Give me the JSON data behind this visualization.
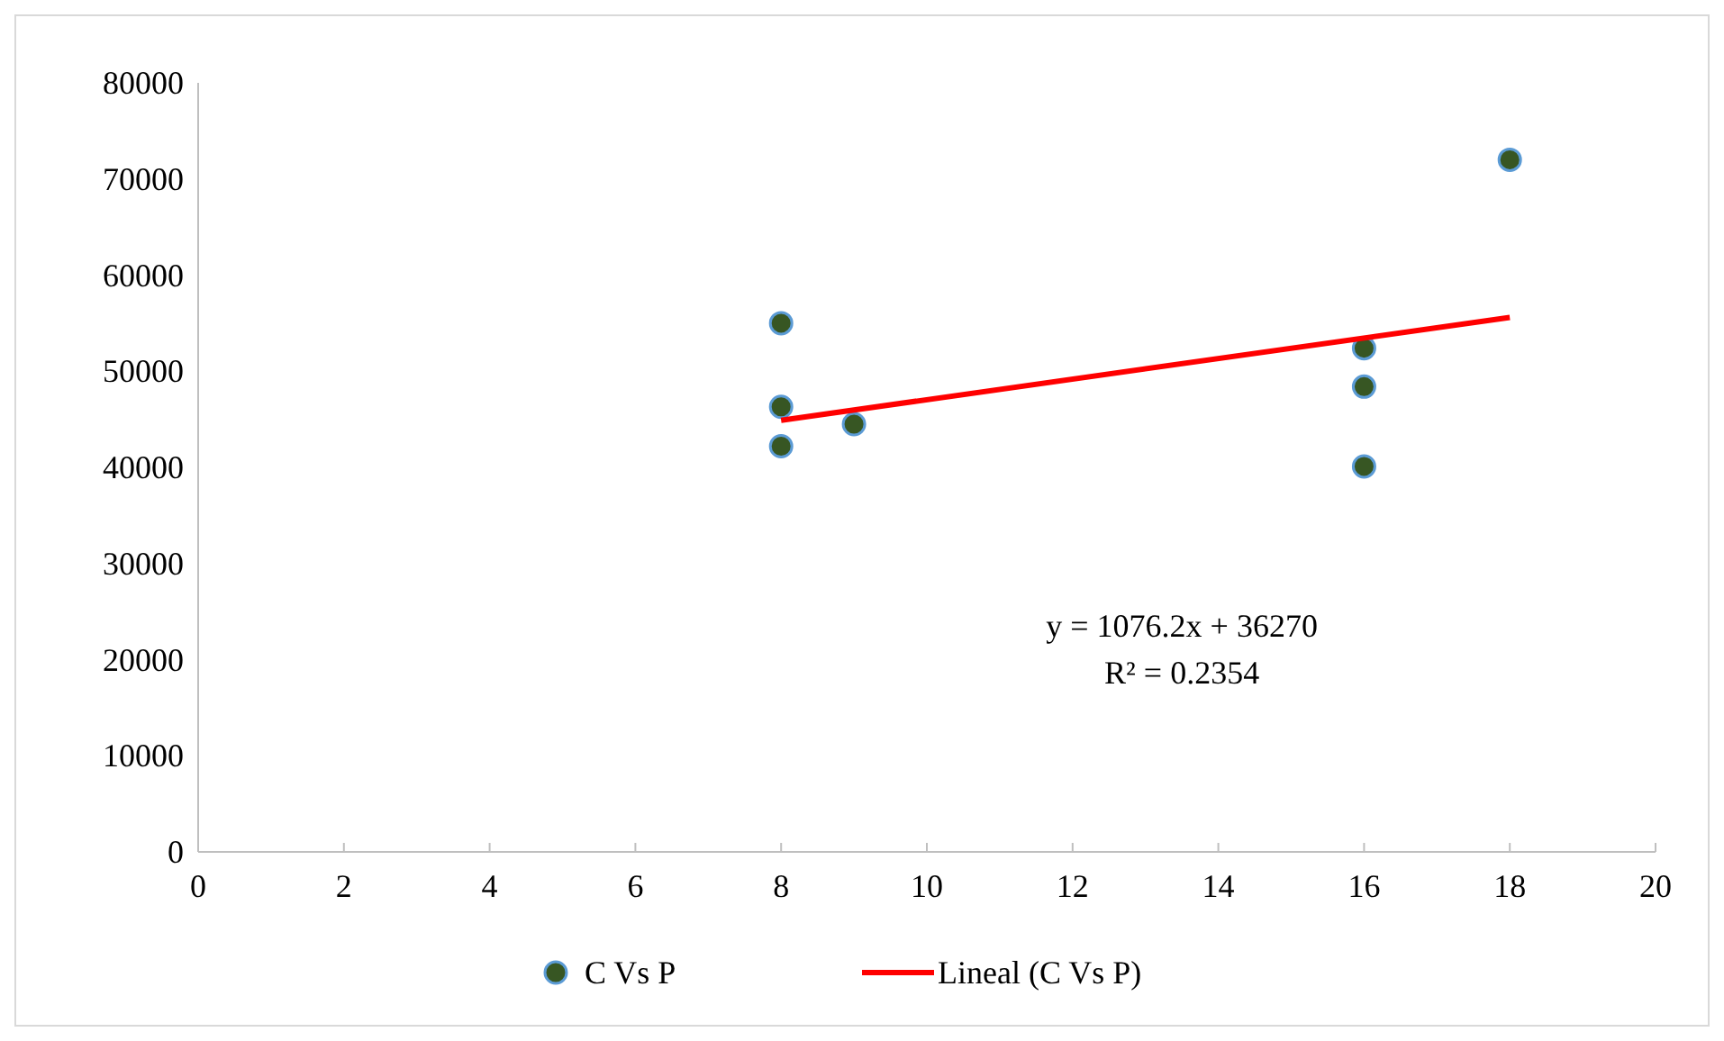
{
  "chart_data": {
    "type": "scatter",
    "xlim": [
      0,
      20
    ],
    "xticks": [
      0,
      2,
      4,
      6,
      8,
      10,
      12,
      14,
      16,
      18,
      20
    ],
    "ylim": [
      0,
      80000
    ],
    "yticks": [
      0,
      10000,
      20000,
      30000,
      40000,
      50000,
      60000,
      70000,
      80000
    ],
    "grid": false,
    "legend": "bottom",
    "series": [
      {
        "name": "C Vs P",
        "color": "#375623",
        "x": [
          8,
          8,
          8,
          9,
          16,
          16,
          16,
          18
        ],
        "values": [
          55000,
          46300,
          42200,
          44500,
          52400,
          48400,
          40100,
          72000
        ]
      },
      {
        "name": "Lineal (C Vs P)",
        "type": "line",
        "color": "#ff0000",
        "line_style": "solid",
        "x": [
          8,
          18
        ],
        "values": [
          44900,
          55600
        ]
      }
    ],
    "annotations": [
      "y = 1076.2x + 36270",
      "R² = 0.2354"
    ]
  }
}
